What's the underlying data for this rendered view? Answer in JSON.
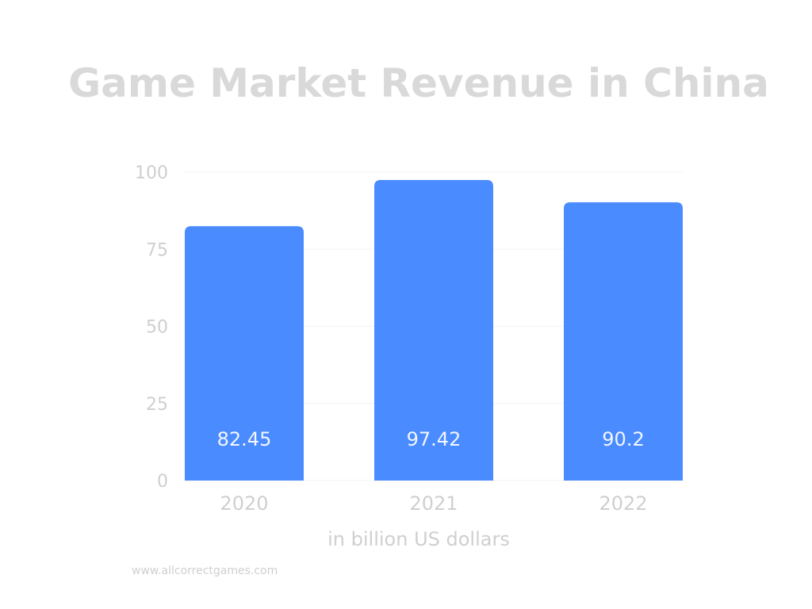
{
  "chart_data": {
    "type": "bar",
    "title": "Game Market Revenue in China",
    "categories": [
      "2020",
      "2021",
      "2022"
    ],
    "values": [
      82.45,
      97.42,
      90.2
    ],
    "value_labels": [
      "82.45",
      "97.42",
      "90.2"
    ],
    "xlabel": "in billion US dollars",
    "ylabel": "",
    "ylim": [
      0,
      100
    ],
    "yticks": [
      0,
      25,
      50,
      75,
      100
    ],
    "grid": true,
    "legend": "none",
    "bar_color": "#4a8cff",
    "gridline_color": "#f3f3f3"
  },
  "footer": {
    "source": "www.allcorrectgames.com"
  }
}
